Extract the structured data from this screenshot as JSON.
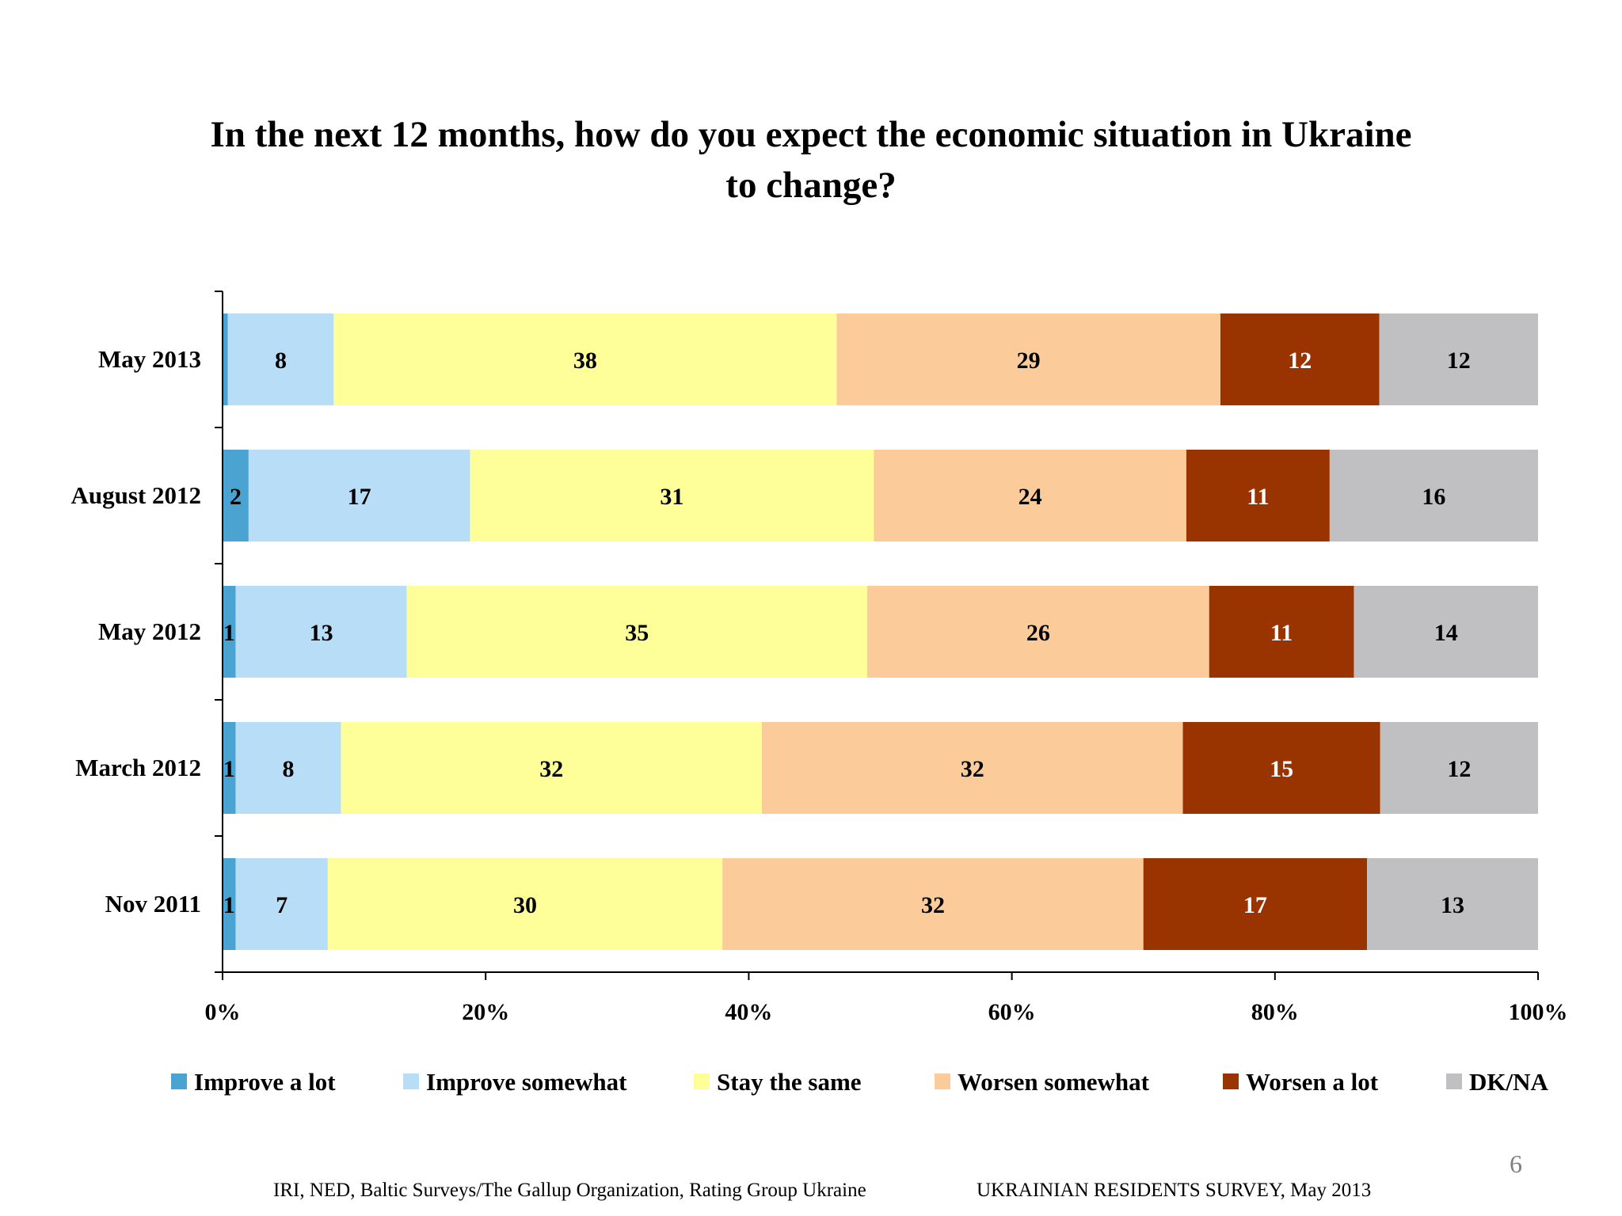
{
  "title_lines": [
    "In the next 12 months, how do you expect the economic situation in Ukraine",
    "to change?"
  ],
  "footer": {
    "left": "IRI, NED,  Baltic Surveys/The Gallup Organization, Rating Group Ukraine",
    "right": "UKRAINIAN RESIDENTS SURVEY, May  2013"
  },
  "page_number": "6",
  "chart_data": {
    "type": "bar",
    "orientation": "horizontal",
    "stacked": true,
    "percent_stacked": true,
    "title": "In the next 12 months, how do you expect the economic situation in Ukraine to change?",
    "xlabel": "",
    "ylabel": "",
    "xlim": [
      0,
      100
    ],
    "x_ticks": [
      "0%",
      "20%",
      "40%",
      "60%",
      "80%",
      "100%"
    ],
    "grid": false,
    "legend_position": "bottom",
    "categories": [
      "May 2013",
      "August 2012",
      "May 2012",
      "March 2012",
      "Nov 2011"
    ],
    "series": [
      {
        "name": "Improve a lot",
        "color": "#4BA3D1",
        "values": [
          0.4,
          2,
          1,
          1,
          1
        ],
        "labels": [
          "0.4",
          "2",
          "1",
          "1",
          "1"
        ]
      },
      {
        "name": "Improve somewhat",
        "color": "#B8DDF7",
        "values": [
          8,
          17,
          13,
          8,
          7
        ],
        "labels": [
          "8",
          "17",
          "13",
          "8",
          "7"
        ]
      },
      {
        "name": "Stay the same",
        "color": "#FFFF99",
        "values": [
          38,
          31,
          35,
          32,
          30
        ],
        "labels": [
          "38",
          "31",
          "35",
          "32",
          "30"
        ]
      },
      {
        "name": "Worsen somewhat",
        "color": "#FCCB9A",
        "values": [
          29,
          24,
          26,
          32,
          32
        ],
        "labels": [
          "29",
          "24",
          "26",
          "32",
          "32"
        ]
      },
      {
        "name": "Worsen a lot",
        "color": "#993300",
        "values": [
          12,
          11,
          11,
          15,
          17
        ],
        "labels": [
          "12",
          "11",
          "11",
          "15",
          "17"
        ]
      },
      {
        "name": "DK/NA",
        "color": "#C0BFC1",
        "values": [
          12,
          16,
          14,
          12,
          13
        ],
        "labels": [
          "12",
          "16",
          "14",
          "12",
          "13"
        ]
      }
    ]
  }
}
